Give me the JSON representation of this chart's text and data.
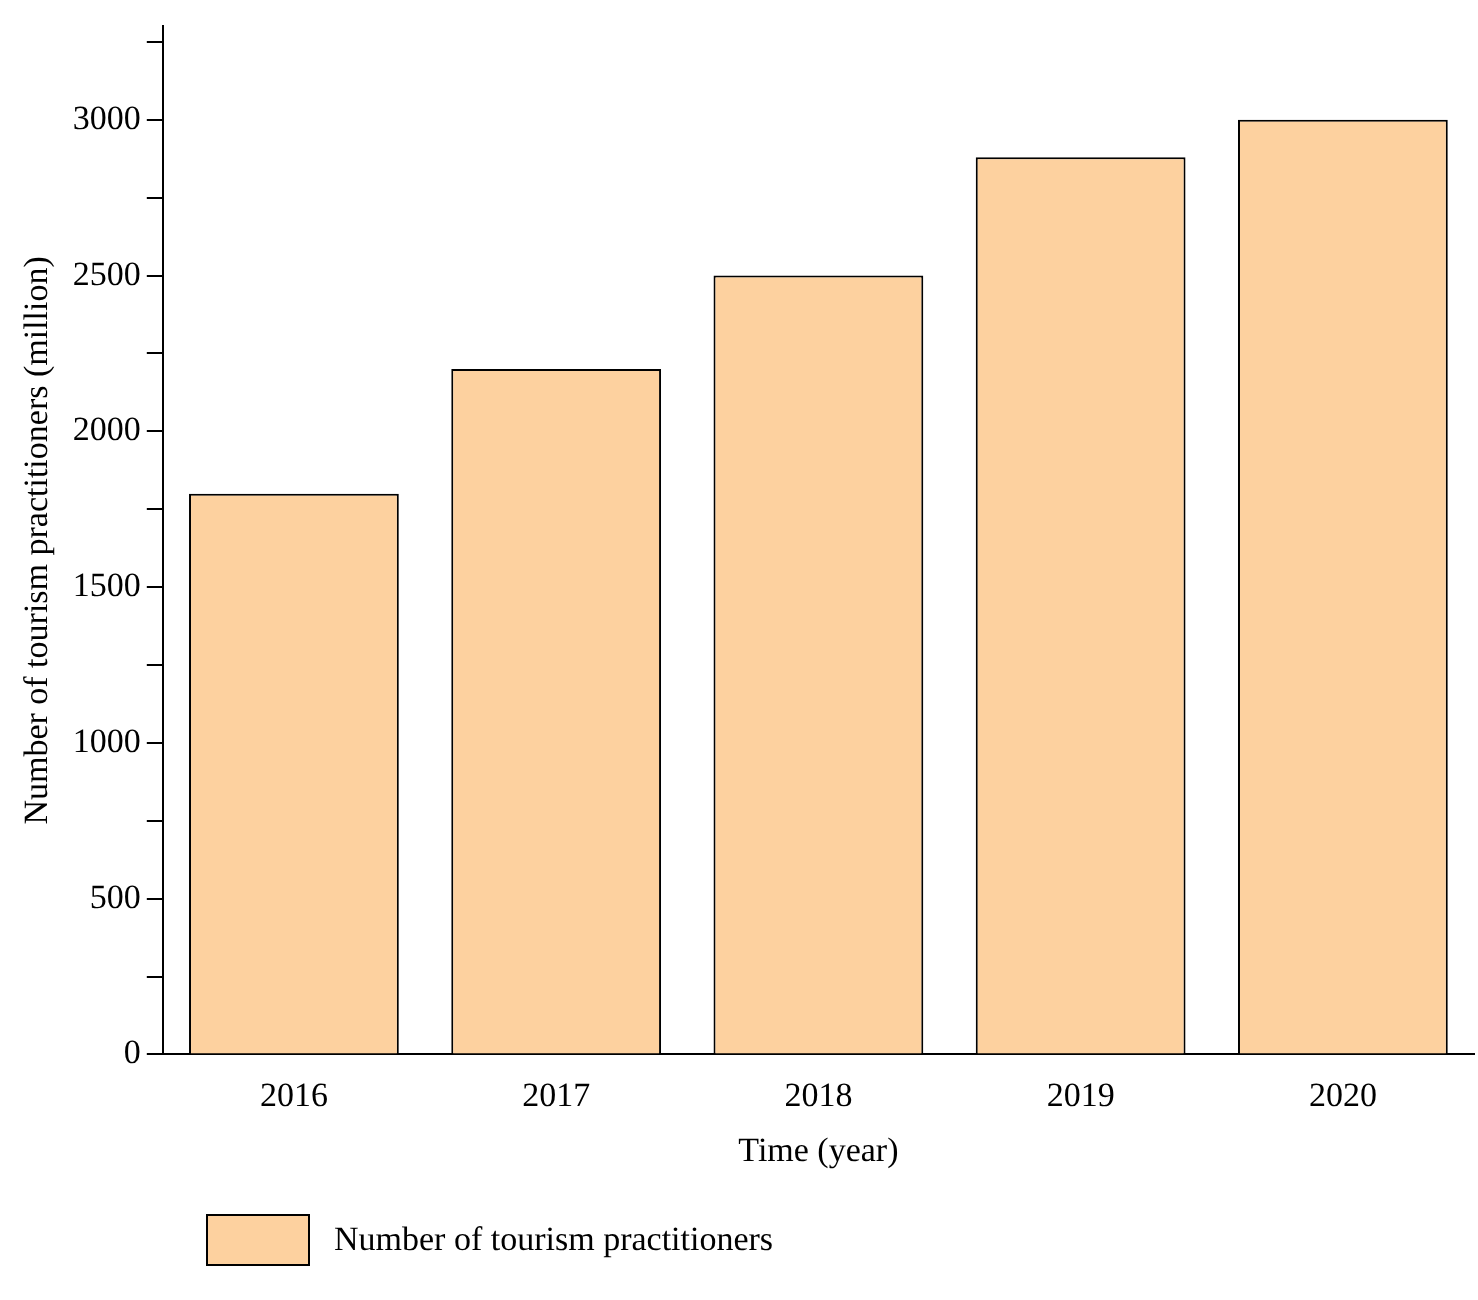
{
  "chart_data": {
    "type": "bar",
    "xlabel": "Time (year)",
    "ylabel": "Number of tourism practitioners (million)",
    "categories": [
      "2016",
      "2017",
      "2018",
      "2019",
      "2020"
    ],
    "series": [
      {
        "name": "Number of tourism practitioners",
        "color": "#fdd19f",
        "values": [
          1800,
          2200,
          2500,
          2880,
          3000
        ]
      }
    ],
    "ylim": [
      0,
      3300
    ],
    "yticks": [
      0,
      {
        "value": 250,
        "label": null
      },
      500,
      {
        "value": 750,
        "label": null
      },
      1000,
      {
        "value": 1250,
        "label": null
      },
      1500,
      {
        "value": 1750,
        "label": null
      },
      2000,
      {
        "value": 2250,
        "label": null
      },
      2500,
      {
        "value": 2750,
        "label": null
      },
      3000,
      {
        "value": 3250,
        "label": null
      }
    ],
    "grid": false,
    "legend": "bottom"
  }
}
